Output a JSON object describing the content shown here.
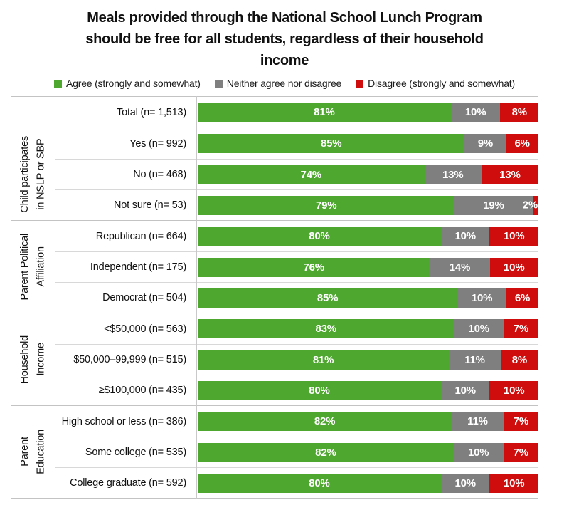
{
  "title_lines": [
    "Meals provided through the National School Lunch Program",
    "should be free for all students, regardless of their household",
    "income"
  ],
  "legend": {
    "items": [
      {
        "id": "agree",
        "label": "Agree (strongly and somewhat)",
        "color": "#4EA72E"
      },
      {
        "id": "neither",
        "label": "Neither agree nor disagree",
        "color": "#7F7F7F"
      },
      {
        "id": "disagree",
        "label": "Disagree (strongly and somewhat)",
        "color": "#D00D0D"
      }
    ]
  },
  "chart_data": {
    "type": "bar",
    "orientation": "horizontal",
    "stacked": true,
    "normalized_to_100": true,
    "title": "Meals provided through the National School Lunch Program should be free for all students, regardless of their household income",
    "legend_position": "top",
    "value_suffix": "%",
    "series_keys": [
      "agree",
      "neither",
      "disagree"
    ],
    "series_names": {
      "agree": "Agree (strongly and somewhat)",
      "neither": "Neither agree nor disagree",
      "disagree": "Disagree (strongly and somewhat)"
    },
    "colors": {
      "agree": "#4EA72E",
      "neither": "#7F7F7F",
      "disagree": "#D00D0D",
      "grid_line": "#C9C9C9"
    },
    "groups": [
      {
        "label": "",
        "rows": [
          {
            "category": "Total (n= 1,513)",
            "agree": 81,
            "neither": 10,
            "disagree": 8
          }
        ]
      },
      {
        "label": "Child participates\nin NSLP or SBP",
        "rows": [
          {
            "category": "Yes (n= 992)",
            "agree": 85,
            "neither": 9,
            "disagree": 6
          },
          {
            "category": "No (n= 468)",
            "agree": 74,
            "neither": 13,
            "disagree": 13
          },
          {
            "category": "Not sure (n= 53)",
            "agree": 79,
            "neither": 19,
            "disagree": 2
          }
        ]
      },
      {
        "label": "Parent Political\nAffiliation",
        "rows": [
          {
            "category": "Republican (n= 664)",
            "agree": 80,
            "neither": 10,
            "disagree": 10
          },
          {
            "category": "Independent (n= 175)",
            "agree": 76,
            "neither": 14,
            "disagree": 10
          },
          {
            "category": "Democrat (n= 504)",
            "agree": 85,
            "neither": 10,
            "disagree": 6
          }
        ]
      },
      {
        "label": "Household\nIncome",
        "rows": [
          {
            "category": "<$50,000 (n= 563)",
            "agree": 83,
            "neither": 10,
            "disagree": 7
          },
          {
            "category": "$50,000–99,999 (n= 515)",
            "agree": 81,
            "neither": 11,
            "disagree": 8
          },
          {
            "category": "≥$100,000 (n= 435)",
            "agree": 80,
            "neither": 10,
            "disagree": 10
          }
        ]
      },
      {
        "label": "Parent\nEducation",
        "rows": [
          {
            "category": "High school or less (n= 386)",
            "agree": 82,
            "neither": 11,
            "disagree": 7
          },
          {
            "category": "Some college (n= 535)",
            "agree": 82,
            "neither": 10,
            "disagree": 7
          },
          {
            "category": "College graduate (n= 592)",
            "agree": 80,
            "neither": 10,
            "disagree": 10
          }
        ]
      }
    ]
  }
}
